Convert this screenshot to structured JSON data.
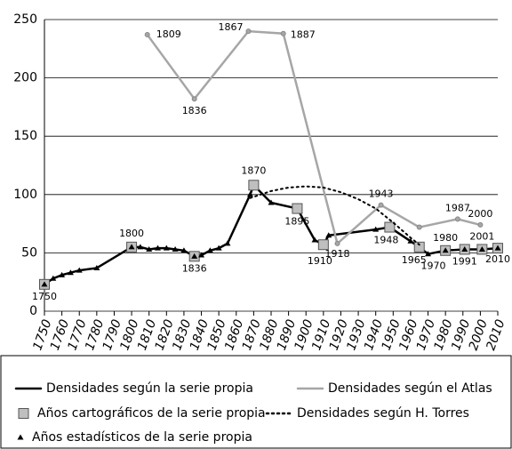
{
  "chart_data": {
    "type": "line",
    "xlim": [
      1750,
      2010
    ],
    "xticks": [
      1750,
      1760,
      1770,
      1780,
      1790,
      1800,
      1810,
      1820,
      1830,
      1840,
      1850,
      1860,
      1870,
      1880,
      1890,
      1900,
      1910,
      1920,
      1930,
      1940,
      1950,
      1960,
      1970,
      1980,
      1990,
      2000,
      2010
    ],
    "ylim": [
      0,
      250
    ],
    "yticks": [
      0,
      50,
      100,
      150,
      200,
      250
    ],
    "grid": true,
    "series": [
      {
        "name": "Densidades según la serie propia",
        "color": "#000000",
        "style": "solid",
        "x": [
          1750,
          1755,
          1760,
          1765,
          1770,
          1780,
          1800,
          1805,
          1810,
          1815,
          1820,
          1825,
          1830,
          1836,
          1840,
          1845,
          1850,
          1855,
          1868,
          1870,
          1880,
          1895,
          1905,
          1910,
          1913,
          1940,
          1948,
          1960,
          1965,
          1970,
          1980,
          1991,
          2001,
          2010
        ],
        "values": [
          23,
          28,
          31,
          33,
          35,
          37,
          55,
          55,
          53,
          54,
          54,
          53,
          52,
          47,
          48,
          52,
          54,
          58,
          100,
          108,
          93,
          88,
          61,
          57,
          65,
          70,
          72,
          60,
          55,
          49,
          52,
          53,
          53,
          54
        ]
      },
      {
        "name": "Densidades según el Atlas",
        "color": "#a6a6a6",
        "style": "solid",
        "x": [
          1809,
          1836,
          1867,
          1887,
          1918,
          1943,
          1965,
          1987,
          2000
        ],
        "values": [
          237,
          182,
          240,
          238,
          58,
          91,
          72,
          79,
          74
        ]
      },
      {
        "name": "Años cartográficos de la serie propia",
        "color": "#bfbfbf",
        "marker": "square",
        "x": [
          1750,
          1800,
          1836,
          1870,
          1895,
          1910,
          1948,
          1965,
          1980,
          1991,
          2001,
          2010
        ],
        "values": [
          23,
          55,
          47,
          108,
          88,
          57,
          72,
          55,
          52,
          53,
          53,
          54
        ]
      },
      {
        "name": "Densidades según H. Torres",
        "color": "#000000",
        "style": "dotted",
        "x": [
          1868,
          1880,
          1890,
          1900,
          1910,
          1920,
          1930,
          1940,
          1950,
          1960,
          1965
        ],
        "values": [
          97,
          103,
          106,
          107,
          106,
          102,
          96,
          88,
          76,
          63,
          57
        ]
      },
      {
        "name": "Años estadísticos de la serie propia",
        "color": "#000000",
        "marker": "triangle",
        "x": [
          1750,
          1755,
          1760,
          1765,
          1770,
          1780,
          1800,
          1805,
          1810,
          1815,
          1820,
          1825,
          1830,
          1836,
          1840,
          1845,
          1850,
          1855,
          1868,
          1880,
          1905,
          1913,
          1940,
          1960,
          1970,
          1980,
          1991,
          2001,
          2010
        ],
        "values": [
          23,
          28,
          31,
          33,
          35,
          37,
          55,
          55,
          53,
          54,
          54,
          53,
          52,
          47,
          48,
          52,
          54,
          58,
          100,
          93,
          61,
          65,
          70,
          60,
          49,
          52,
          53,
          53,
          54
        ]
      }
    ]
  }
}
